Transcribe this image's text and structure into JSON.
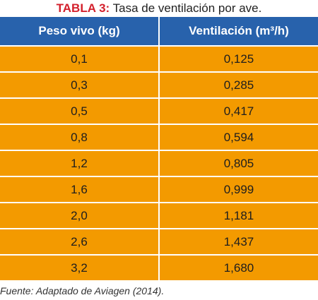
{
  "caption": {
    "label": "TABLA 3:",
    "text": "Tasa de ventilación por ave."
  },
  "table": {
    "headers": [
      "Peso vivo (kg)",
      "Ventilación (m³/h)"
    ],
    "rows": [
      [
        "0,1",
        "0,125"
      ],
      [
        "0,3",
        "0,285"
      ],
      [
        "0,5",
        "0,417"
      ],
      [
        "0,8",
        "0,594"
      ],
      [
        "1,2",
        "0,805"
      ],
      [
        "1,6",
        "0,999"
      ],
      [
        "2,0",
        "1,181"
      ],
      [
        "2,6",
        "1,437"
      ],
      [
        "3,2",
        "1,680"
      ]
    ]
  },
  "source": "Fuente: Adaptado de Aviagen (2014).",
  "colors": {
    "header_bg": "#2862ac",
    "cell_bg": "#f39a00",
    "caption_label": "#d3202c"
  }
}
